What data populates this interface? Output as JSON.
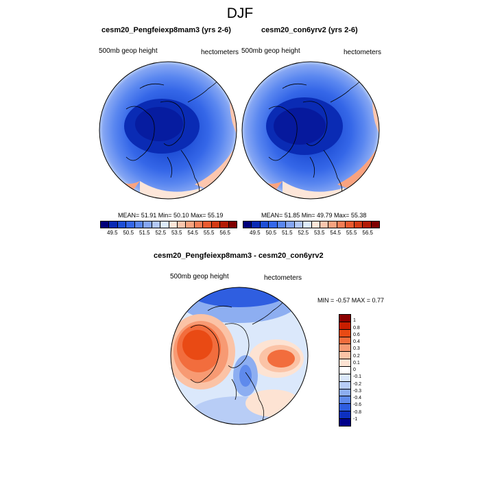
{
  "figure": {
    "title": "DJF"
  },
  "panels": [
    {
      "title": "cesm20_Pengfeiexp8mam3 (yrs 2-6)",
      "left_label": "500mb geop height",
      "right_label": "hectometers",
      "stats": "MEAN=  51.91  Min=  50.10  Max=  55.19"
    },
    {
      "title": "cesm20_con6yrv2 (yrs 2-6)",
      "left_label": "500mb geop height",
      "right_label": "hectometers",
      "stats": "MEAN=  51.85  Min=  49.79  Max=  55.38"
    }
  ],
  "diff_panel": {
    "title": "cesm20_Pengfeiexp8mam3 - cesm20_con6yrv2",
    "left_label": "500mb geop height",
    "right_label": "hectometers",
    "stats": "MIN =  -0.57 MAX =   0.77"
  },
  "colorbar_abs": {
    "ticks": [
      "49.5",
      "50.5",
      "51.5",
      "52.5",
      "53.5",
      "54.5",
      "55.5",
      "56.5"
    ],
    "colors": [
      "#00007a",
      "#0a2bb4",
      "#1f4fd6",
      "#3567e8",
      "#5a87f0",
      "#85a6f3",
      "#b3c8f7",
      "#ddebfb",
      "#fde6d9",
      "#fcc6ae",
      "#f9a380",
      "#f47d55",
      "#ea5a30",
      "#d43a14",
      "#b31a05",
      "#7f0000"
    ]
  },
  "colorbar_diff": {
    "ticks": [
      "1",
      "0.8",
      "0.6",
      "0.4",
      "0.3",
      "0.2",
      "0.1",
      "0",
      "-0.1",
      "-0.2",
      "-0.3",
      "-0.4",
      "-0.6",
      "-0.8",
      "-1"
    ],
    "colors": [
      "#8b0000",
      "#c81e00",
      "#e94a14",
      "#f26d3d",
      "#f79a73",
      "#fbc3a6",
      "#fde3d3",
      "#ffffff",
      "#dbe8fb",
      "#b8cdf6",
      "#8daef1",
      "#5f8aec",
      "#2f5ee0",
      "#0d30c0",
      "#00008a"
    ]
  }
}
